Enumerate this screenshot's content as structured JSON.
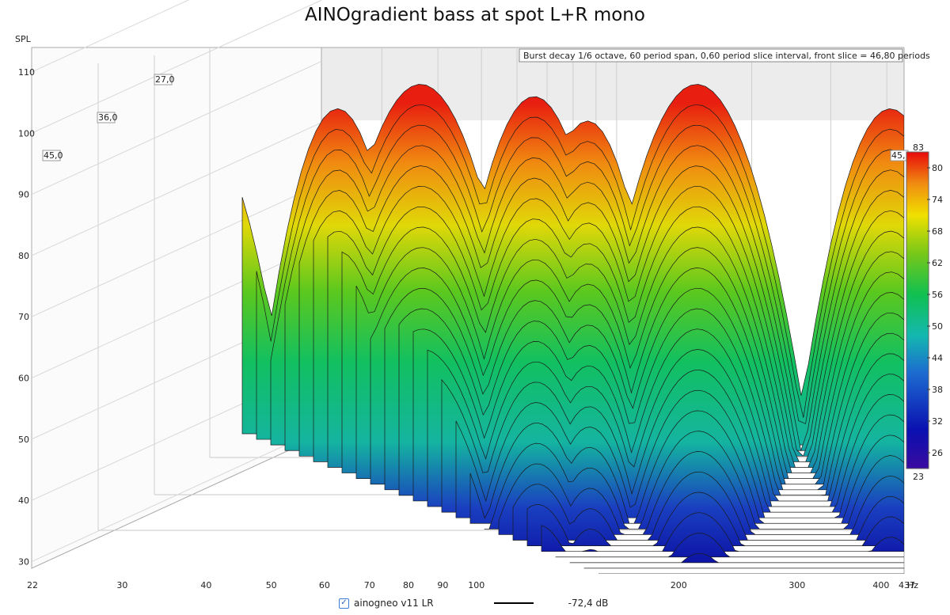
{
  "window": {
    "title": "AINOgradient bass at spot L+R mono"
  },
  "chart_data": {
    "type": "waterfall",
    "title": "AINOgradient bass at spot L+R mono",
    "info": "Burst decay 1/6 octave, 60 period span, 0,60 period slice interval,  front slice = 46,80 periods",
    "ylabel": "SPL",
    "xunit": "Hz",
    "x_scale": "log",
    "xlim": [
      22,
      437
    ],
    "ylim": [
      28,
      114
    ],
    "x_ticks": [
      22,
      30,
      40,
      50,
      60,
      70,
      80,
      90,
      100,
      200,
      300,
      400,
      437
    ],
    "y_ticks": [
      30,
      40,
      50,
      60,
      70,
      80,
      90,
      100,
      110
    ],
    "depth_labels": [
      "27,0",
      "36,0",
      "45,0",
      "45,"
    ],
    "colorbar": {
      "min": 23,
      "max": 83,
      "ticks": [
        26,
        32,
        38,
        44,
        50,
        56,
        62,
        68,
        74,
        80
      ]
    },
    "ridge_peaks": [
      {
        "freq": 50,
        "spl": 103
      },
      {
        "freq": 57,
        "spl": 101
      },
      {
        "freq": 85,
        "spl": 104
      },
      {
        "freq": 108,
        "spl": 108
      },
      {
        "freq": 150,
        "spl": 106
      },
      {
        "freq": 175,
        "spl": 102
      },
      {
        "freq": 240,
        "spl": 108
      },
      {
        "freq": 420,
        "spl": 104
      }
    ]
  },
  "legend": {
    "checked": true,
    "series_name": "ainogneo v11 LR",
    "value": "-72,4 dB"
  }
}
